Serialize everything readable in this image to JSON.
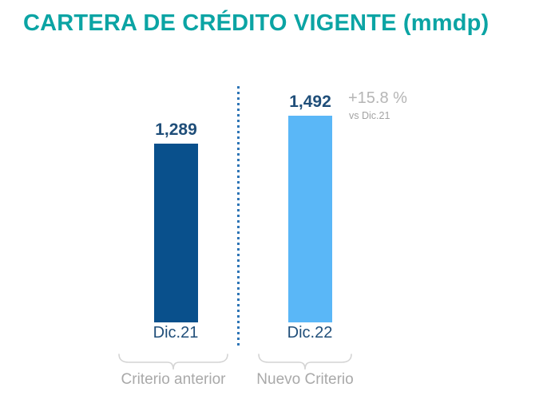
{
  "title": "CARTERA DE CRÉDITO VIGENTE (mmdp)",
  "chart_data": {
    "type": "bar",
    "title": "CARTERA DE CRÉDITO VIGENTE (mmdp)",
    "unit": "mmdp",
    "categories": [
      "Dic.21",
      "Dic.22"
    ],
    "values": [
      1289,
      1492
    ],
    "value_labels": [
      "1,289",
      "1,492"
    ],
    "series_colors": [
      "#09508c",
      "#5ab7f7"
    ],
    "group_labels": [
      "Criterio anterior",
      "Nuevo Criterio"
    ],
    "annotation": {
      "delta": "+15.8 %",
      "reference": "vs Dic.21"
    },
    "ylim": [
      0,
      1600
    ],
    "grid": false,
    "legend": false,
    "layout_hint": "two bars separated by vertical blue dotted divider; value labels above bars; gray underbraces with group captions below axis labels"
  },
  "colors": {
    "title_teal": "#0ba4a4",
    "bar_dark_blue": "#09508c",
    "bar_light_blue": "#5ab7f7",
    "label_navy": "#1f4e79",
    "divider_blue": "#2e75b6",
    "muted_gray": "#a9a9a9",
    "brace_gray": "#d4d4d4",
    "background": "#ffffff"
  }
}
